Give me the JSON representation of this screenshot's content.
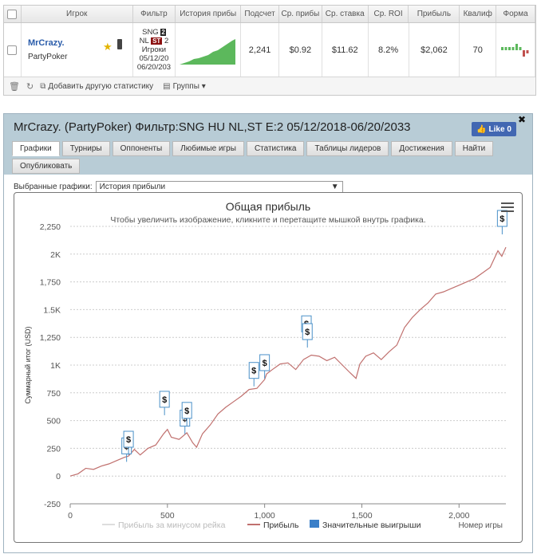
{
  "stats": {
    "headers": {
      "player": "Игрок",
      "filter": "Фильтр",
      "history": "История прибы",
      "count": "Подсчет",
      "avg_profit": "Ср. прибы",
      "avg_stake": "Ср. ставка",
      "avg_roi": "Ср. ROI",
      "profit": "Прибыль",
      "qualifier": "Квалиф",
      "form": "Форма"
    },
    "row": {
      "player_name": "MrCrazy.",
      "site": "PartyPoker",
      "filter_line1": "SNG",
      "filter_badge1": "2",
      "filter_line2a": "NL",
      "filter_badge2": "ST",
      "filter_line2b": "2",
      "filter_line3": "Игроки",
      "filter_line4": "05/12/20",
      "filter_line5": "06/20/203",
      "count": "2,241",
      "avg_profit": "$0.92",
      "avg_stake": "$11.62",
      "avg_roi": "8.2%",
      "profit": "$2,062",
      "qualifier": "70"
    },
    "toolbar": {
      "add_stat": "Добавить другую статистику",
      "groups": "Группы"
    }
  },
  "panel": {
    "title": "MrCrazy. (PartyPoker) Фильтр:SNG HU NL,ST E:2 05/12/2018-06/20/2033",
    "like_label": "Like 0",
    "tabs": [
      "Графики",
      "Турниры",
      "Оппоненты",
      "Любимые игры",
      "Статистика",
      "Таблицы лидеров",
      "Достижения",
      "Найти",
      "Опубликовать"
    ],
    "selected_charts_label": "Выбранные графики:",
    "selected_chart_value": "История прибыли"
  },
  "chart_data": {
    "type": "line",
    "title": "Общая прибыль",
    "subtitle": "Чтобы увеличить изображение, кликните и перетащите мышкой внутрь графика.",
    "xlabel": "Номер игры",
    "ylabel": "Суммарный итог (USD)",
    "xlim": [
      0,
      2241
    ],
    "ylim": [
      -250,
      2250
    ],
    "x_ticks": [
      0,
      500,
      1000,
      1500,
      2000
    ],
    "x_tick_labels": [
      "0",
      "500",
      "1,000",
      "1,500",
      "2,000"
    ],
    "y_ticks": [
      -250,
      0,
      250,
      500,
      750,
      1000,
      1250,
      1500,
      1750,
      2000,
      2250
    ],
    "y_tick_labels": [
      "-250",
      "0",
      "250",
      "500",
      "750",
      "1K",
      "1,250",
      "1.5K",
      "1,750",
      "2K",
      "2,250"
    ],
    "legend": [
      "Прибыль за минусом рейка",
      "Прибыль",
      "Значительные выигрыши"
    ],
    "series": [
      {
        "name": "Прибыль",
        "color": "#c0706e",
        "x": [
          0,
          40,
          80,
          120,
          160,
          200,
          240,
          280,
          300,
          330,
          360,
          400,
          440,
          480,
          500,
          520,
          560,
          600,
          630,
          650,
          680,
          720,
          760,
          800,
          840,
          880,
          920,
          960,
          1000,
          1010,
          1040,
          1080,
          1120,
          1160,
          1200,
          1240,
          1280,
          1320,
          1360,
          1400,
          1440,
          1470,
          1490,
          1520,
          1560,
          1600,
          1640,
          1680,
          1720,
          1760,
          1800,
          1840,
          1880,
          1920,
          1960,
          2000,
          2040,
          2080,
          2120,
          2160,
          2200,
          2220,
          2241
        ],
        "y": [
          0,
          20,
          70,
          60,
          90,
          110,
          140,
          170,
          180,
          240,
          190,
          250,
          280,
          380,
          420,
          350,
          330,
          390,
          300,
          260,
          380,
          460,
          560,
          620,
          670,
          720,
          780,
          790,
          870,
          920,
          960,
          1010,
          1020,
          960,
          1050,
          1090,
          1080,
          1040,
          1070,
          1000,
          930,
          880,
          1010,
          1080,
          1110,
          1050,
          1120,
          1180,
          1340,
          1430,
          1500,
          1560,
          1640,
          1660,
          1690,
          1720,
          1750,
          1780,
          1830,
          1880,
          2030,
          1980,
          2062
        ]
      }
    ],
    "big_wins_x": [
      290,
      300,
      485,
      590,
      600,
      945,
      1000,
      1215,
      1220,
      2222
    ],
    "big_wins_y": [
      200,
      260,
      620,
      450,
      520,
      880,
      950,
      1300,
      1230,
      2250
    ],
    "big_win_label": "$"
  },
  "form_bars": [
    1,
    1,
    1,
    1,
    2,
    1,
    -2,
    -1
  ]
}
